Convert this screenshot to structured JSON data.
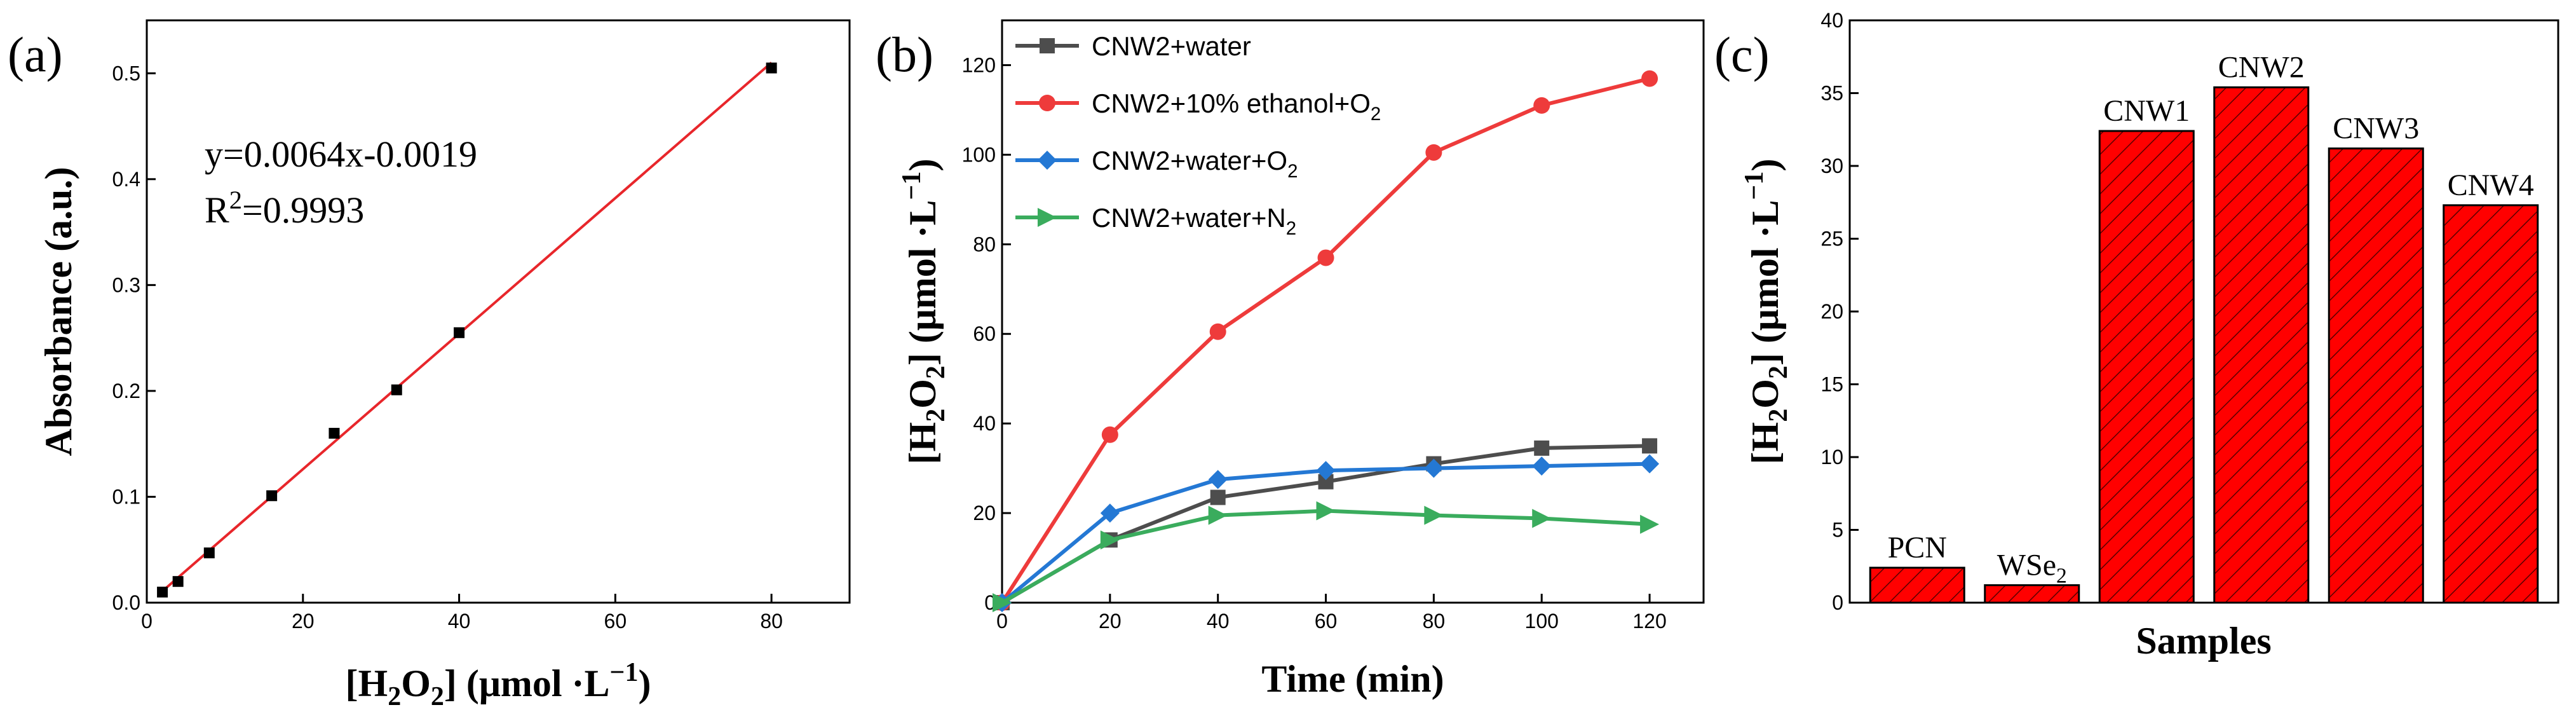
{
  "chart_data": [
    {
      "panel": "(a)",
      "type": "scatter",
      "xlabel": "[H2O2] (μmol ·L−1)",
      "ylabel": "Absorbance (a.u.)",
      "xlim": [
        0,
        90
      ],
      "ylim": [
        0,
        0.55
      ],
      "xticks": [
        0,
        20,
        40,
        60,
        80
      ],
      "yticks": [
        0.0,
        0.1,
        0.2,
        0.3,
        0.4,
        0.5
      ],
      "ytick_labels": [
        "0.0",
        "0.1",
        "0.2",
        "0.3",
        "0.4",
        "0.5"
      ],
      "x": [
        2,
        4,
        8,
        16,
        24,
        32,
        40,
        80
      ],
      "y": [
        0.01,
        0.02,
        0.047,
        0.101,
        0.16,
        0.201,
        0.255,
        0.505
      ],
      "fit": {
        "slope": 0.0064,
        "intercept": -0.0019,
        "x_range": [
          1.5,
          80
        ]
      },
      "equation": "y=0.0064x-0.0019",
      "r_squared_label": "R",
      "r_squared_power": "2",
      "r_squared_value": "=0.9993",
      "colors": {
        "points": "#000000",
        "fit": "#e8262b"
      }
    },
    {
      "panel": "(b)",
      "type": "line",
      "xlabel": "Time (min)",
      "ylabel": "[H2O2] (μmol ·L−1)",
      "xlim": [
        0,
        130
      ],
      "ylim": [
        0,
        130
      ],
      "xticks": [
        0,
        20,
        40,
        60,
        80,
        100,
        120
      ],
      "yticks": [
        0,
        20,
        40,
        60,
        80,
        100,
        120
      ],
      "x": [
        0,
        20,
        40,
        60,
        80,
        100,
        120
      ],
      "series": [
        {
          "name": "CNW2+water",
          "sub": "",
          "marker": "square",
          "color": "#4d4d4d",
          "values": [
            0,
            14,
            23.5,
            27,
            31,
            34.5,
            35
          ]
        },
        {
          "name": "CNW2+10% ethanol+O",
          "sub": "2",
          "marker": "circle",
          "color": "#ee3b3b",
          "values": [
            0,
            37.5,
            60.5,
            77,
            100.5,
            111,
            117
          ]
        },
        {
          "name": "CNW2+water+O",
          "sub": "2",
          "marker": "diamond",
          "color": "#2478d4",
          "values": [
            0,
            20,
            27.5,
            29.5,
            30,
            30.5,
            31
          ]
        },
        {
          "name": "CNW2+water+N",
          "sub": "2",
          "marker": "triangle-right",
          "color": "#3aac5d",
          "values": [
            0,
            14,
            19.5,
            20.5,
            19.5,
            18.8,
            17.5
          ]
        }
      ]
    },
    {
      "panel": "(c)",
      "type": "bar",
      "xlabel": "Samples",
      "ylabel": "[H2O2] (μmol ·L−1)",
      "ylim": [
        0,
        40
      ],
      "yticks": [
        0,
        5,
        10,
        15,
        20,
        25,
        30,
        35,
        40
      ],
      "categories": [
        "PCN",
        "WSe",
        "CNW1",
        "CNW2",
        "CNW3",
        "CNW4"
      ],
      "category_subs": [
        "",
        "2",
        "",
        "",
        "",
        ""
      ],
      "values": [
        2.4,
        1.2,
        32.4,
        35.4,
        31.2,
        27.3
      ],
      "colors": {
        "bar": "#ff0000",
        "edge": "#000000"
      }
    }
  ],
  "ylabel_chem": {
    "open": "[H",
    "sub1": "2",
    "mid": "O",
    "sub2": "2",
    "unit": "] (μmol ·L",
    "sup": "−1",
    "close": ")"
  }
}
